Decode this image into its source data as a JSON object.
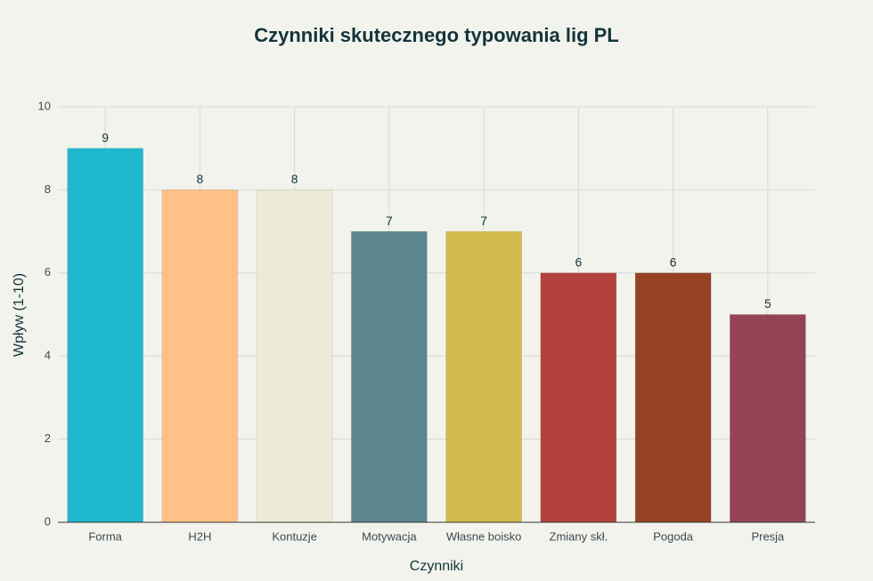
{
  "chart_data": {
    "type": "bar",
    "title": "Czynniki skutecznego typowania lig PL",
    "x_label": "Czynniki",
    "y_label": "Wpływ (1-10)",
    "categories": [
      "Forma",
      "H2H",
      "Kontuzje",
      "Motywacja",
      "Własne boisko",
      "Zmiany skł.",
      "Pogoda",
      "Presja"
    ],
    "values": [
      9,
      8,
      8,
      7,
      7,
      6,
      6,
      5
    ],
    "colors": [
      "#1FB8CD",
      "#FFC185",
      "#ECEBD5",
      "#5D878F",
      "#D2BA4C",
      "#B4413C",
      "#964325",
      "#944454"
    ],
    "ylim": [
      0,
      10
    ],
    "yticks": [
      0,
      2,
      4,
      6,
      8,
      10
    ],
    "grid": true
  }
}
